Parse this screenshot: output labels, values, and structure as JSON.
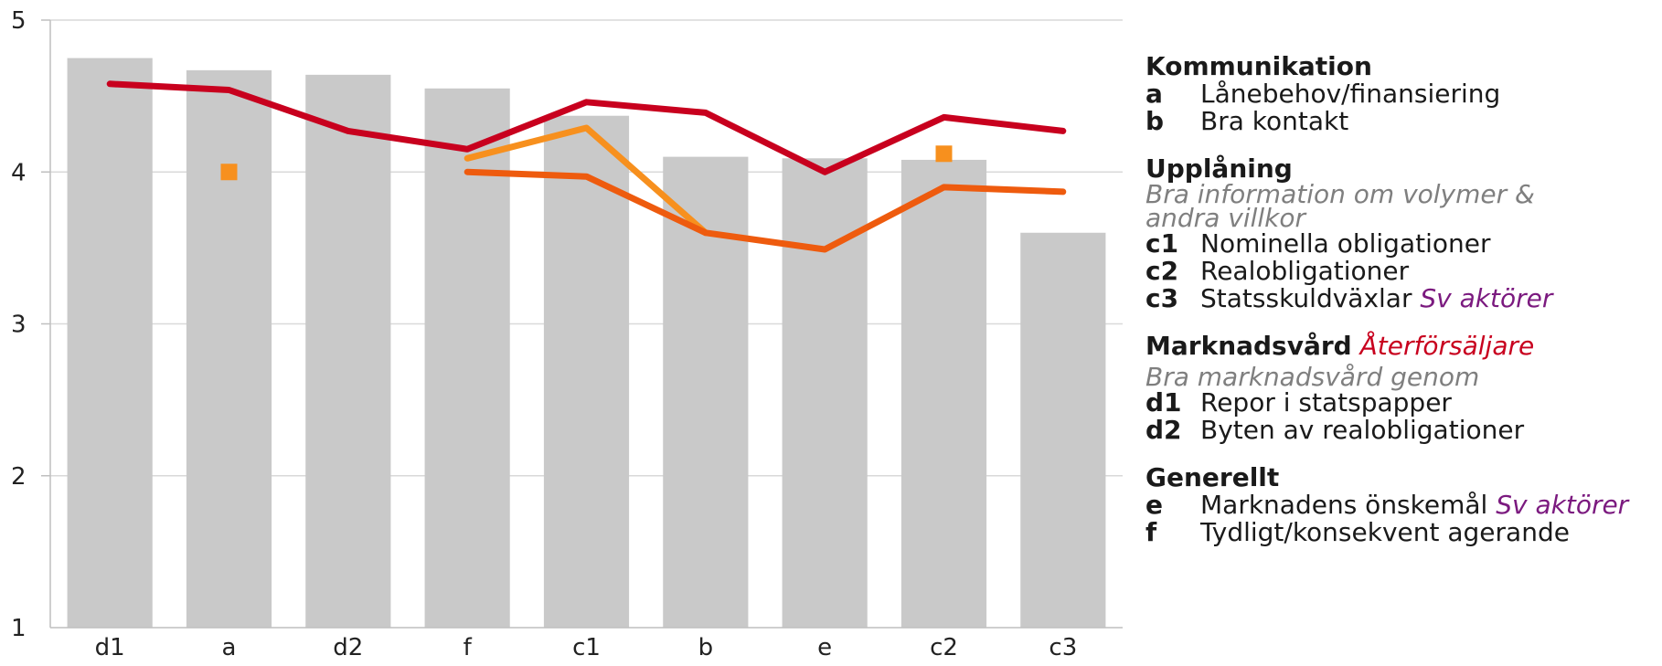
{
  "chart_data": {
    "type": "bar",
    "categories": [
      "d1",
      "a",
      "d2",
      "f",
      "c1",
      "b",
      "e",
      "c2",
      "c3"
    ],
    "ylim": [
      1,
      5
    ],
    "yticks": [
      1,
      2,
      3,
      4,
      5
    ],
    "grid": true,
    "bar_values": [
      4.75,
      4.67,
      4.64,
      4.55,
      4.37,
      4.1,
      4.09,
      4.08,
      3.6
    ],
    "bar_color": "#c9c9c9",
    "lines": [
      {
        "color": "#c8001e",
        "values": [
          4.58,
          4.54,
          4.27,
          4.15,
          4.46,
          4.39,
          4.0,
          4.36,
          4.27
        ]
      },
      {
        "color": "#f7901e",
        "values": [
          null,
          null,
          null,
          4.09,
          4.29,
          3.6,
          null,
          null,
          null
        ]
      },
      {
        "color": "#ee5b0e",
        "values": [
          null,
          null,
          null,
          4.0,
          3.97,
          3.6,
          3.49,
          3.9,
          3.87
        ]
      }
    ],
    "markers": [
      {
        "color": "#f7901e",
        "category": "a",
        "value": 4.0
      },
      {
        "color": "#f7901e",
        "category": "c2",
        "value": 4.12
      }
    ]
  },
  "legend": {
    "sections": [
      {
        "title": "Kommunikation",
        "items": [
          {
            "code": "a",
            "label": "Lånebehov/finansiering"
          },
          {
            "code": "b",
            "label": "Bra kontakt"
          }
        ]
      },
      {
        "title": "Upplåning",
        "note": "Bra information om volymer & andra villkor",
        "items": [
          {
            "code": "c1",
            "label": "Nominella obligationer"
          },
          {
            "code": "c2",
            "label": "Realobligationer"
          },
          {
            "code": "c3",
            "label": "Statsskuldväxlar",
            "tag": "Sv aktörer"
          }
        ]
      },
      {
        "title": "Marknadsvård",
        "title_tag": "Återförsäljare",
        "note": "Bra marknadsvård genom",
        "items": [
          {
            "code": "d1",
            "label": "Repor i statspapper"
          },
          {
            "code": "d2",
            "label": "Byten av realobligationer"
          }
        ]
      },
      {
        "title": "Generellt",
        "items": [
          {
            "code": "e",
            "label": "Marknadens önskemål",
            "tag": "Sv aktörer"
          },
          {
            "code": "f",
            "label": "Tydligt/konsekvent agerande"
          }
        ]
      }
    ]
  }
}
